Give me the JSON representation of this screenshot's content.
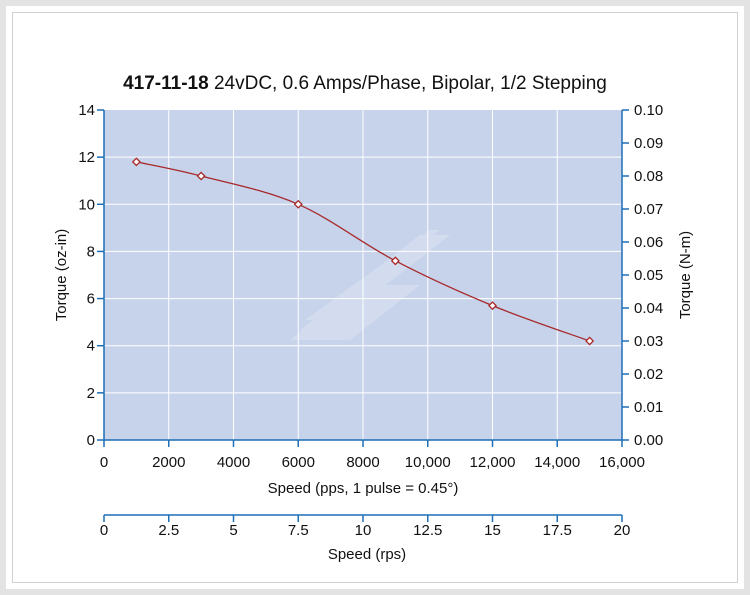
{
  "chart_data": {
    "type": "line",
    "title_part_number": "417-11-18",
    "title_rest": " 24vDC, 0.6 Amps/Phase, Bipolar, 1/2 Stepping",
    "xlabel": "Speed (pps, 1 pulse = 0.45°)",
    "ylabel": "Torque (oz-in)",
    "y2label": "Torque (N-m)",
    "x2label": "Speed (rps)",
    "xlim": [
      0,
      16000
    ],
    "ylim": [
      0,
      14
    ],
    "y2lim": [
      0,
      0.1
    ],
    "x2lim": [
      0,
      20
    ],
    "x_ticks": [
      "0",
      "2000",
      "4000",
      "6000",
      "8000",
      "10,000",
      "12,000",
      "14,000",
      "16,000"
    ],
    "y_ticks": [
      "0",
      "2",
      "4",
      "6",
      "8",
      "10",
      "12",
      "14"
    ],
    "y2_ticks": [
      "0.00",
      "0.01",
      "0.02",
      "0.03",
      "0.04",
      "0.05",
      "0.06",
      "0.07",
      "0.08",
      "0.09",
      "0.10"
    ],
    "x2_ticks": [
      "0",
      "2.5",
      "5",
      "7.5",
      "10",
      "12.5",
      "15",
      "17.5",
      "20"
    ],
    "grid": true,
    "series": [
      {
        "x": [
          1000,
          3000,
          6000,
          9000,
          12000,
          15000
        ],
        "y": [
          11.8,
          11.2,
          10.0,
          7.6,
          5.7,
          4.2
        ]
      }
    ],
    "colors": {
      "plot_background": "#c6d3ea",
      "grid": "#ffffff",
      "line": "#a8282a",
      "marker_fill": "#ffffff",
      "axis_line": "#1d6fb8"
    }
  }
}
